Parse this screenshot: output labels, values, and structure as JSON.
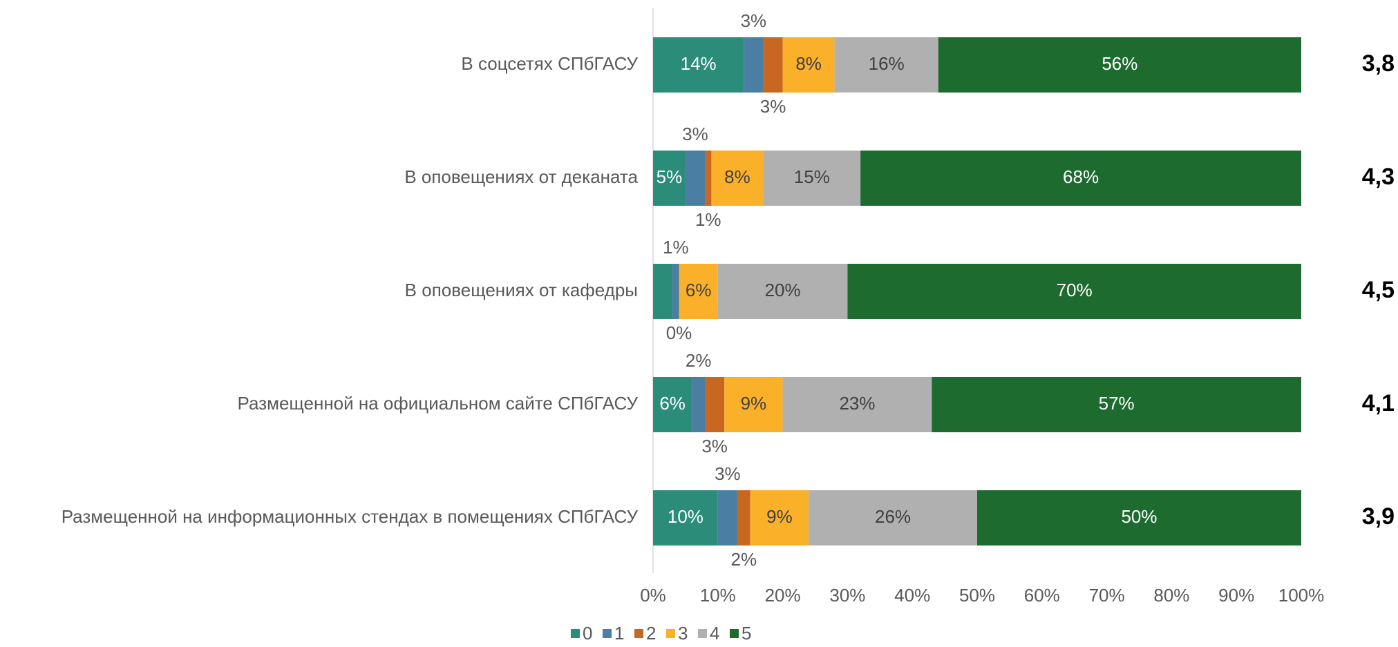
{
  "chart_data": {
    "type": "stacked_barh",
    "categories": [
      "В соцсетях СПбГАСУ",
      "В оповещениях от деканата",
      "В оповещениях от кафедры",
      "Размещенной на официальном сайте СПбГАСУ",
      "Размещенной на информационных стендах в помещениях СПбГАСУ"
    ],
    "series": [
      {
        "name": "0",
        "color": "#2a8c79",
        "values": [
          14,
          5,
          3,
          6,
          10
        ],
        "value_labels": [
          "14%",
          "5%",
          null,
          "6%",
          "10%"
        ]
      },
      {
        "name": "1",
        "color": "#4a7fa3",
        "values": [
          3,
          3,
          1,
          2,
          3
        ],
        "value_labels": [
          "3%",
          "3%",
          "1%",
          "2%",
          "3%"
        ]
      },
      {
        "name": "2",
        "color": "#c8671f",
        "values": [
          3,
          1,
          0,
          3,
          2
        ],
        "value_labels": [
          "3%",
          "1%",
          "0%",
          "3%",
          "2%"
        ]
      },
      {
        "name": "3",
        "color": "#fbb02a",
        "values": [
          8,
          8,
          6,
          9,
          9
        ],
        "value_labels": [
          "8%",
          "8%",
          "6%",
          "9%",
          "9%"
        ]
      },
      {
        "name": "4",
        "color": "#b0b0b0",
        "values": [
          16,
          15,
          20,
          23,
          26
        ],
        "value_labels": [
          "16%",
          "15%",
          "20%",
          "23%",
          "26%"
        ]
      },
      {
        "name": "5",
        "color": "#1e6b30",
        "values": [
          56,
          68,
          70,
          57,
          50
        ],
        "value_labels": [
          "56%",
          "68%",
          "70%",
          "57%",
          "50%"
        ]
      }
    ],
    "scores": [
      "3,8",
      "4,3",
      "4,5",
      "4,1",
      "3,9"
    ],
    "xlim": [
      0,
      100
    ],
    "xticks": [
      {
        "value": 0,
        "label": "0%"
      },
      {
        "value": 10,
        "label": "10%"
      },
      {
        "value": 20,
        "label": "20%"
      },
      {
        "value": 30,
        "label": "30%"
      },
      {
        "value": 40,
        "label": "40%"
      },
      {
        "value": 50,
        "label": "50%"
      },
      {
        "value": 60,
        "label": "60%"
      },
      {
        "value": 70,
        "label": "70%"
      },
      {
        "value": 80,
        "label": "80%"
      },
      {
        "value": 90,
        "label": "90%"
      },
      {
        "value": 100,
        "label": "100%"
      }
    ],
    "legend": "bottom"
  }
}
